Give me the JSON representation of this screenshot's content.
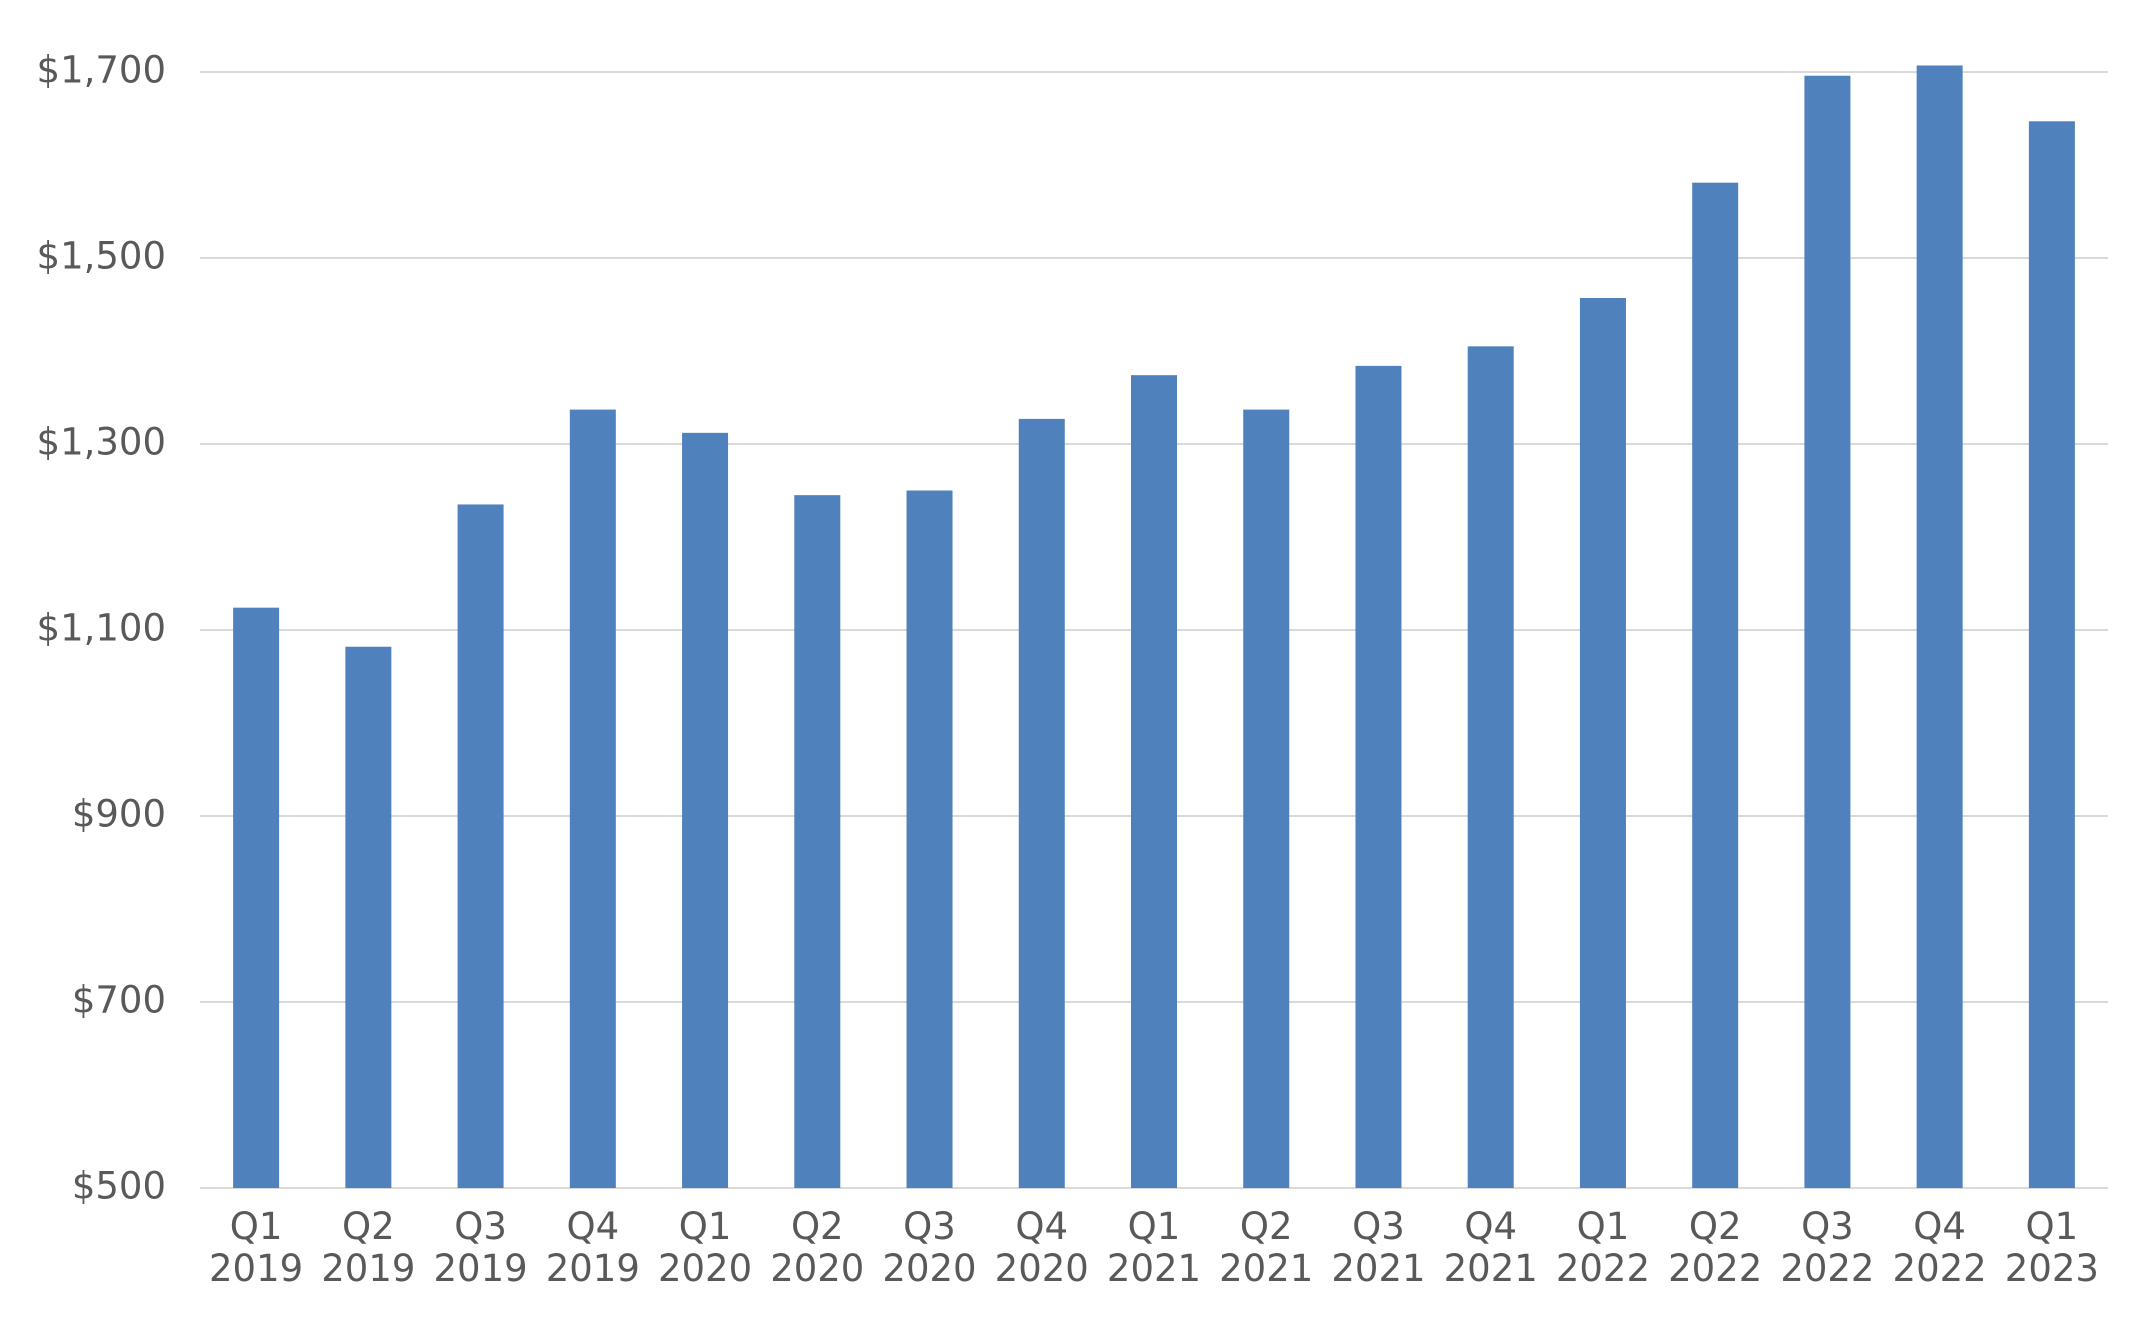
{
  "chart_data": {
    "type": "bar",
    "categories": [
      "Q1 2019",
      "Q2 2019",
      "Q3 2019",
      "Q4 2019",
      "Q1 2020",
      "Q2 2020",
      "Q3 2020",
      "Q4 2020",
      "Q1 2021",
      "Q2 2021",
      "Q3 2021",
      "Q4 2021",
      "Q1 2022",
      "Q2 2022",
      "Q3 2022",
      "Q4 2022",
      "Q1 2023"
    ],
    "values": [
      1124,
      1082,
      1235,
      1337,
      1312,
      1245,
      1250,
      1327,
      1374,
      1337,
      1384,
      1405,
      1457,
      1581,
      1696,
      1707,
      1647
    ],
    "color": "#4f81bd",
    "ylim": [
      500,
      1700
    ],
    "yticks": [
      {
        "value": 500,
        "label": "$500"
      },
      {
        "value": 700,
        "label": "$700"
      },
      {
        "value": 900,
        "label": "$900"
      },
      {
        "value": 1100,
        "label": "$1,100"
      },
      {
        "value": 1300,
        "label": "$1,300"
      },
      {
        "value": 1500,
        "label": "$1,500"
      },
      {
        "value": 1700,
        "label": "$1,700"
      }
    ],
    "grid": true
  }
}
